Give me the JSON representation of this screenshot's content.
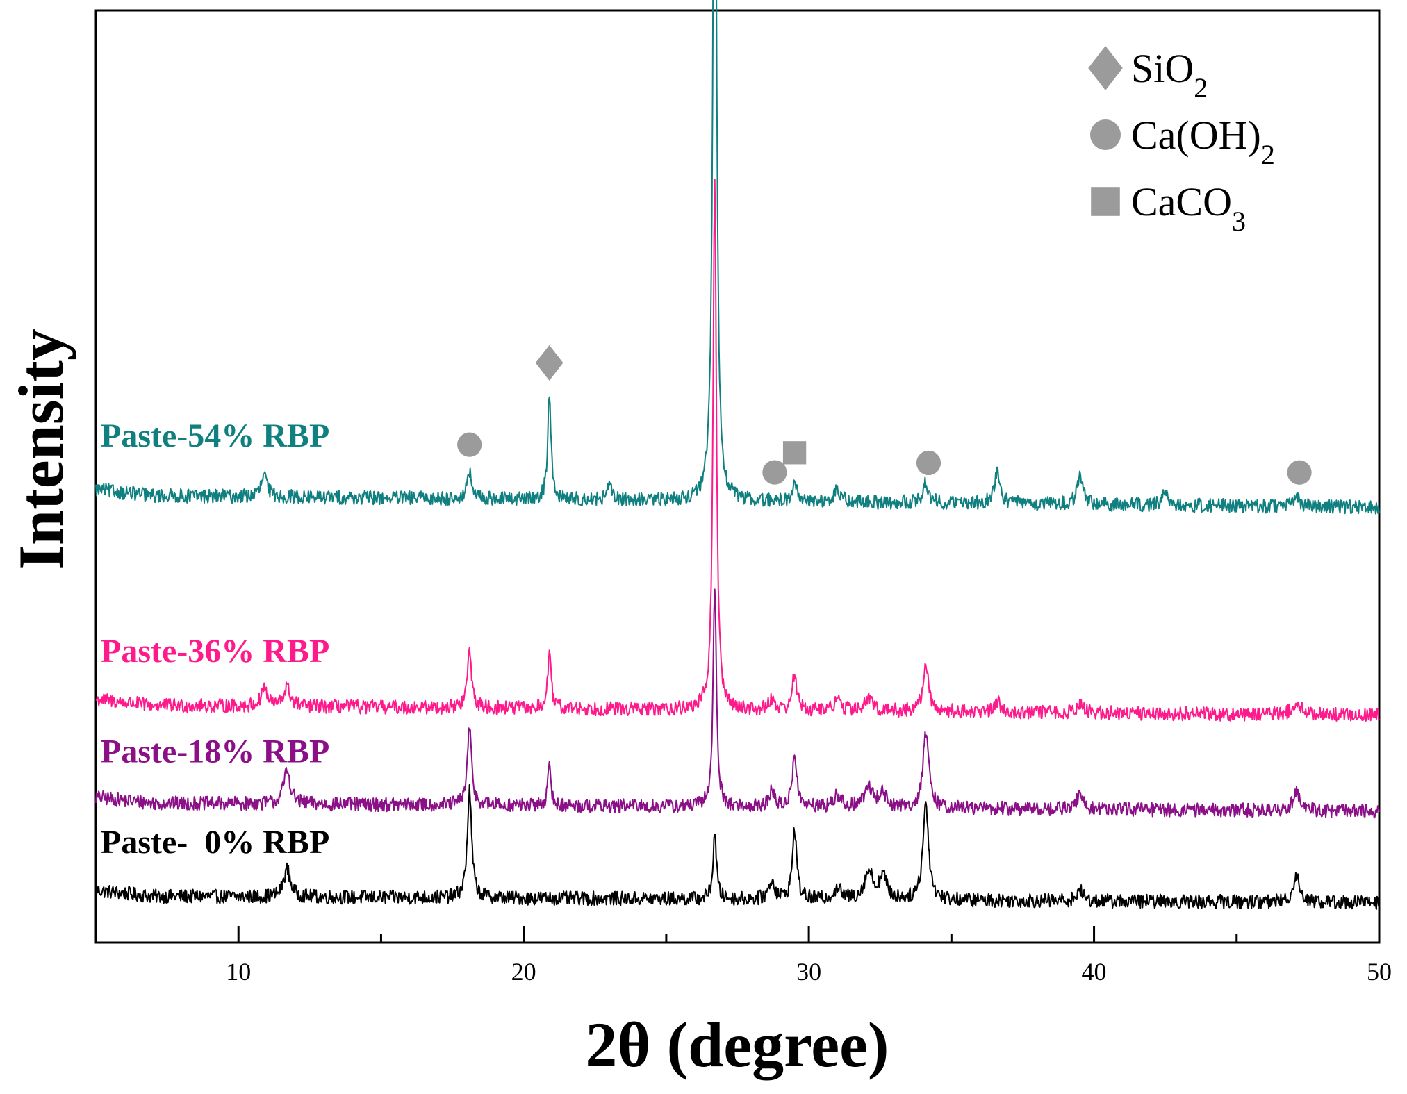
{
  "chart_data": {
    "type": "line",
    "xlabel": "2θ (degree)",
    "ylabel": "Intensity",
    "xlim": [
      5,
      50
    ],
    "ylim": [
      0,
      100
    ],
    "x_ticks": [
      10,
      20,
      30,
      40,
      50
    ],
    "x_minor_ticks": [
      15,
      25,
      35,
      45
    ],
    "x_tick_labels": [
      "10",
      "20",
      "30",
      "40",
      "50"
    ],
    "grid": false,
    "legend_position": "top-right",
    "series": [
      {
        "name": "Paste-  0% RBP",
        "color": "#000000",
        "baseline": 5.0,
        "slope": -0.7,
        "noise": 0.75,
        "peaks": [
          [
            11.7,
            3.0,
            0.14
          ],
          [
            18.1,
            11.5,
            0.09
          ],
          [
            26.7,
            7.2,
            0.07
          ],
          [
            28.7,
            2.0,
            0.12
          ],
          [
            29.5,
            7.6,
            0.09
          ],
          [
            31.0,
            1.2,
            0.15
          ],
          [
            32.1,
            3.0,
            0.18
          ],
          [
            32.6,
            2.5,
            0.15
          ],
          [
            34.1,
            10.3,
            0.12
          ],
          [
            39.5,
            1.2,
            0.12
          ],
          [
            47.1,
            2.8,
            0.14
          ]
        ]
      },
      {
        "name": "Paste-18% RBP",
        "color": "#8b0f87",
        "baseline": 15.0,
        "slope": -0.9,
        "noise": 0.75,
        "peaks": [
          [
            11.7,
            3.6,
            0.14
          ],
          [
            18.1,
            8.2,
            0.09
          ],
          [
            20.9,
            4.0,
            0.07
          ],
          [
            26.7,
            23.5,
            0.07
          ],
          [
            28.7,
            1.6,
            0.12
          ],
          [
            29.5,
            5.9,
            0.09
          ],
          [
            31.0,
            1.3,
            0.15
          ],
          [
            32.1,
            2.2,
            0.18
          ],
          [
            32.6,
            1.5,
            0.15
          ],
          [
            34.1,
            8.1,
            0.12
          ],
          [
            39.5,
            1.6,
            0.12
          ],
          [
            47.1,
            2.3,
            0.14
          ]
        ]
      },
      {
        "name": "Paste-36% RBP",
        "color": "#ff1a8c",
        "baseline": 25.5,
        "slope": -1.1,
        "noise": 0.75,
        "peaks": [
          [
            10.9,
            2.0,
            0.12
          ],
          [
            11.7,
            2.0,
            0.14
          ],
          [
            18.1,
            6.1,
            0.09
          ],
          [
            20.9,
            6.0,
            0.07
          ],
          [
            26.7,
            57.0,
            0.07
          ],
          [
            28.7,
            1.2,
            0.12
          ],
          [
            29.5,
            4.0,
            0.09
          ],
          [
            31.0,
            1.1,
            0.15
          ],
          [
            32.1,
            1.2,
            0.18
          ],
          [
            34.1,
            4.8,
            0.12
          ],
          [
            36.6,
            1.2,
            0.12
          ],
          [
            39.5,
            1.0,
            0.12
          ],
          [
            47.1,
            1.6,
            0.14
          ]
        ]
      },
      {
        "name": "Paste-54% RBP",
        "color": "#0f7f7f",
        "baseline": 48.0,
        "slope": -1.3,
        "noise": 0.75,
        "peaks": [
          [
            10.9,
            2.3,
            0.12
          ],
          [
            18.1,
            2.8,
            0.09
          ],
          [
            20.9,
            11.2,
            0.07
          ],
          [
            23.0,
            1.4,
            0.1
          ],
          [
            26.7,
            94.0,
            0.07
          ],
          [
            29.5,
            2.2,
            0.09
          ],
          [
            31.0,
            1.2,
            0.15
          ],
          [
            34.1,
            2.2,
            0.12
          ],
          [
            36.6,
            3.3,
            0.12
          ],
          [
            39.5,
            3.0,
            0.12
          ],
          [
            42.5,
            1.3,
            0.12
          ],
          [
            47.1,
            1.0,
            0.14
          ]
        ]
      }
    ],
    "legend": [
      {
        "marker": "diamond",
        "formula": "SiO",
        "subscript": "2"
      },
      {
        "marker": "circle",
        "formula": "Ca(OH)",
        "subscript": "2"
      },
      {
        "marker": "square",
        "formula": "CaCO",
        "subscript": "3"
      }
    ],
    "phase_markers": [
      {
        "marker": "diamond",
        "x": 26.7,
        "series": "Paste-54% RBP"
      },
      {
        "marker": "diamond",
        "x": 20.9,
        "series": "Paste-54% RBP"
      },
      {
        "marker": "circle",
        "x": 18.1,
        "series": "Paste-54% RBP"
      },
      {
        "marker": "circle",
        "x": 28.8,
        "series": "Paste-54% RBP"
      },
      {
        "marker": "square",
        "x": 29.5,
        "series": "Paste-54% RBP"
      },
      {
        "marker": "circle",
        "x": 34.2,
        "series": "Paste-54% RBP"
      },
      {
        "marker": "circle",
        "x": 47.2,
        "series": "Paste-54% RBP"
      }
    ],
    "marker_color": "#9b9b9b"
  }
}
